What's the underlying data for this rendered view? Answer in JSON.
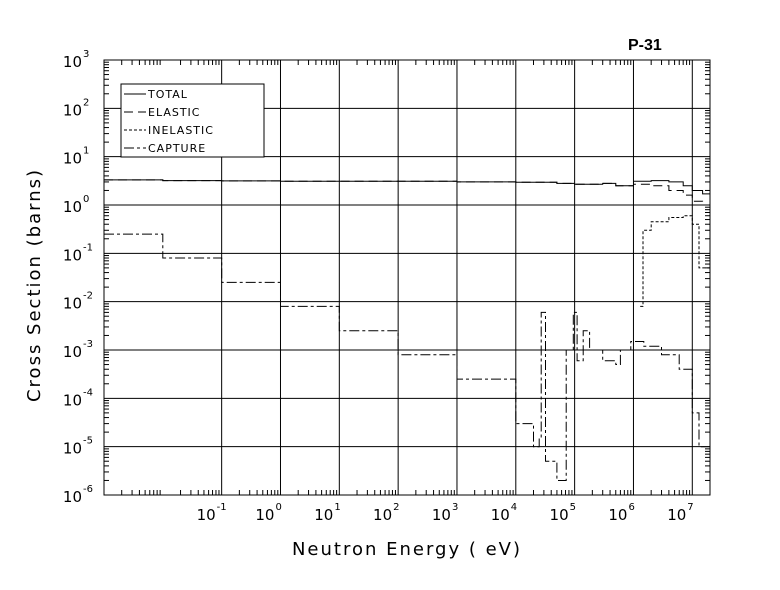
{
  "chart_data": {
    "type": "line",
    "title": "P-31",
    "xlabel": "Neutron Energy ( eV)",
    "ylabel": "Cross Section (barns)",
    "x_scale": "log",
    "y_scale": "log",
    "xlim": [
      0.001,
      20000000.0
    ],
    "ylim": [
      1e-06,
      1000.0
    ],
    "grid": true,
    "legend_position": "top-left",
    "x_ticks": [
      {
        "base": "10",
        "exp": "-1",
        "value": 0.1
      },
      {
        "base": "10",
        "exp": "0",
        "value": 1
      },
      {
        "base": "10",
        "exp": "1",
        "value": 10
      },
      {
        "base": "10",
        "exp": "2",
        "value": 100
      },
      {
        "base": "10",
        "exp": "3",
        "value": 1000
      },
      {
        "base": "10",
        "exp": "4",
        "value": 10000
      },
      {
        "base": "10",
        "exp": "5",
        "value": 100000
      },
      {
        "base": "10",
        "exp": "6",
        "value": 1000000
      },
      {
        "base": "10",
        "exp": "7",
        "value": 10000000
      }
    ],
    "y_ticks": [
      {
        "base": "10",
        "exp": "-6",
        "value": 1e-06
      },
      {
        "base": "10",
        "exp": "-5",
        "value": 1e-05
      },
      {
        "base": "10",
        "exp": "-4",
        "value": 0.0001
      },
      {
        "base": "10",
        "exp": "-3",
        "value": 0.001
      },
      {
        "base": "10",
        "exp": "-2",
        "value": 0.01
      },
      {
        "base": "10",
        "exp": "-1",
        "value": 0.1
      },
      {
        "base": "10",
        "exp": "0",
        "value": 1
      },
      {
        "base": "10",
        "exp": "1",
        "value": 10
      },
      {
        "base": "10",
        "exp": "2",
        "value": 100
      },
      {
        "base": "10",
        "exp": "3",
        "value": 1000
      }
    ],
    "series": [
      {
        "name": "TOTAL",
        "dash": "none",
        "points": [
          [
            0.001,
            3.3
          ],
          [
            0.01,
            3.2
          ],
          [
            0.1,
            3.15
          ],
          [
            1,
            3.1
          ],
          [
            10,
            3.1
          ],
          [
            100,
            3.1
          ],
          [
            1000,
            3.0
          ],
          [
            10000,
            2.95
          ],
          [
            50000,
            2.8
          ],
          [
            100000,
            2.7
          ],
          [
            300000,
            2.8
          ],
          [
            500000,
            2.5
          ],
          [
            1000000,
            3.1
          ],
          [
            2000000,
            3.2
          ],
          [
            4000000,
            3.0
          ],
          [
            7000000,
            2.5
          ],
          [
            10000000,
            2.0
          ],
          [
            15000000,
            1.7
          ],
          [
            20000000,
            1.9
          ]
        ]
      },
      {
        "name": "ELASTIC",
        "dash": "9,5",
        "points": [
          [
            0.001,
            3.3
          ],
          [
            0.01,
            3.2
          ],
          [
            0.1,
            3.15
          ],
          [
            1,
            3.1
          ],
          [
            10,
            3.1
          ],
          [
            100,
            3.1
          ],
          [
            1000,
            3.0
          ],
          [
            10000,
            2.95
          ],
          [
            50000,
            2.8
          ],
          [
            100000,
            2.7
          ],
          [
            300000,
            2.8
          ],
          [
            500000,
            2.5
          ],
          [
            1000000,
            2.7
          ],
          [
            2000000,
            2.5
          ],
          [
            4000000,
            2.0
          ],
          [
            7000000,
            1.6
          ],
          [
            10000000,
            1.2
          ],
          [
            15000000,
            1.0
          ],
          [
            20000000,
            1.1
          ]
        ]
      },
      {
        "name": "INELASTIC",
        "dash": "3,2",
        "points": [
          [
            1300000,
            0.008
          ],
          [
            1450000,
            0.3
          ],
          [
            2000000,
            0.45
          ],
          [
            4000000,
            0.55
          ],
          [
            7000000,
            0.6
          ],
          [
            10000000,
            0.4
          ],
          [
            13000000,
            0.05
          ],
          [
            20000000,
            0.06
          ]
        ]
      },
      {
        "name": "CAPTURE",
        "dash": "10,3,3,3",
        "points": [
          [
            0.001,
            0.25
          ],
          [
            0.01,
            0.08
          ],
          [
            0.1,
            0.025
          ],
          [
            1,
            0.008
          ],
          [
            10,
            0.0025
          ],
          [
            100,
            0.0008
          ],
          [
            1000,
            0.00025
          ],
          [
            10000,
            3e-05
          ],
          [
            20000,
            1e-05
          ],
          [
            25000,
            1.5e-05
          ],
          [
            27000,
            0.006
          ],
          [
            30000,
            0.006
          ],
          [
            32000,
            5e-06
          ],
          [
            50000,
            2e-06
          ],
          [
            70000,
            2e-06
          ],
          [
            72000,
            0.001
          ],
          [
            90000,
            0.001
          ],
          [
            95000,
            0.006
          ],
          [
            110000,
            0.0006
          ],
          [
            130000,
            0.0006
          ],
          [
            140000,
            0.0025
          ],
          [
            170000,
            0.0025
          ],
          [
            180000,
            0.001
          ],
          [
            300000,
            0.0006
          ],
          [
            500000,
            0.0005
          ],
          [
            600000,
            0.001
          ],
          [
            900000,
            0.0015
          ],
          [
            1500000,
            0.0012
          ],
          [
            3000000,
            0.0008
          ],
          [
            6000000,
            0.0004
          ],
          [
            10000000,
            5e-05
          ],
          [
            13000000,
            1e-05
          ],
          [
            20000000,
            2e-05
          ]
        ]
      }
    ]
  }
}
